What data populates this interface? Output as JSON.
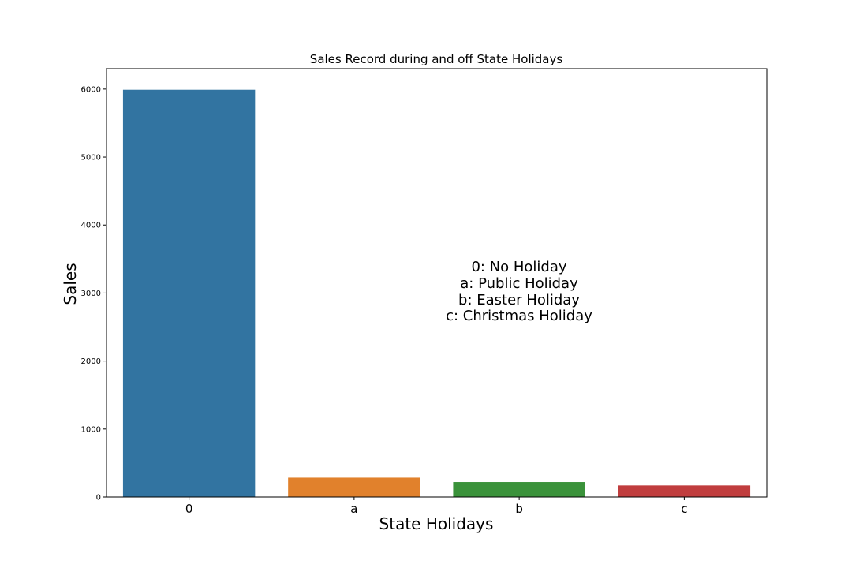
{
  "chart_data": {
    "type": "bar",
    "title": "Sales Record during and off State Holidays",
    "xlabel": "State Holidays",
    "ylabel": "Sales",
    "categories": [
      "0",
      "a",
      "b",
      "c"
    ],
    "values": [
      5990,
      285,
      220,
      170
    ],
    "colors": [
      "#3274a1",
      "#e1812c",
      "#3a923a",
      "#c03d3e"
    ],
    "ylim": [
      0,
      6300
    ],
    "yticks": [
      0,
      1000,
      2000,
      3000,
      4000,
      5000,
      6000
    ],
    "grid": false,
    "annotation": [
      "0: No Holiday",
      "a: Public Holiday",
      "b: Easter Holiday",
      "c: Christmas Holiday"
    ]
  }
}
